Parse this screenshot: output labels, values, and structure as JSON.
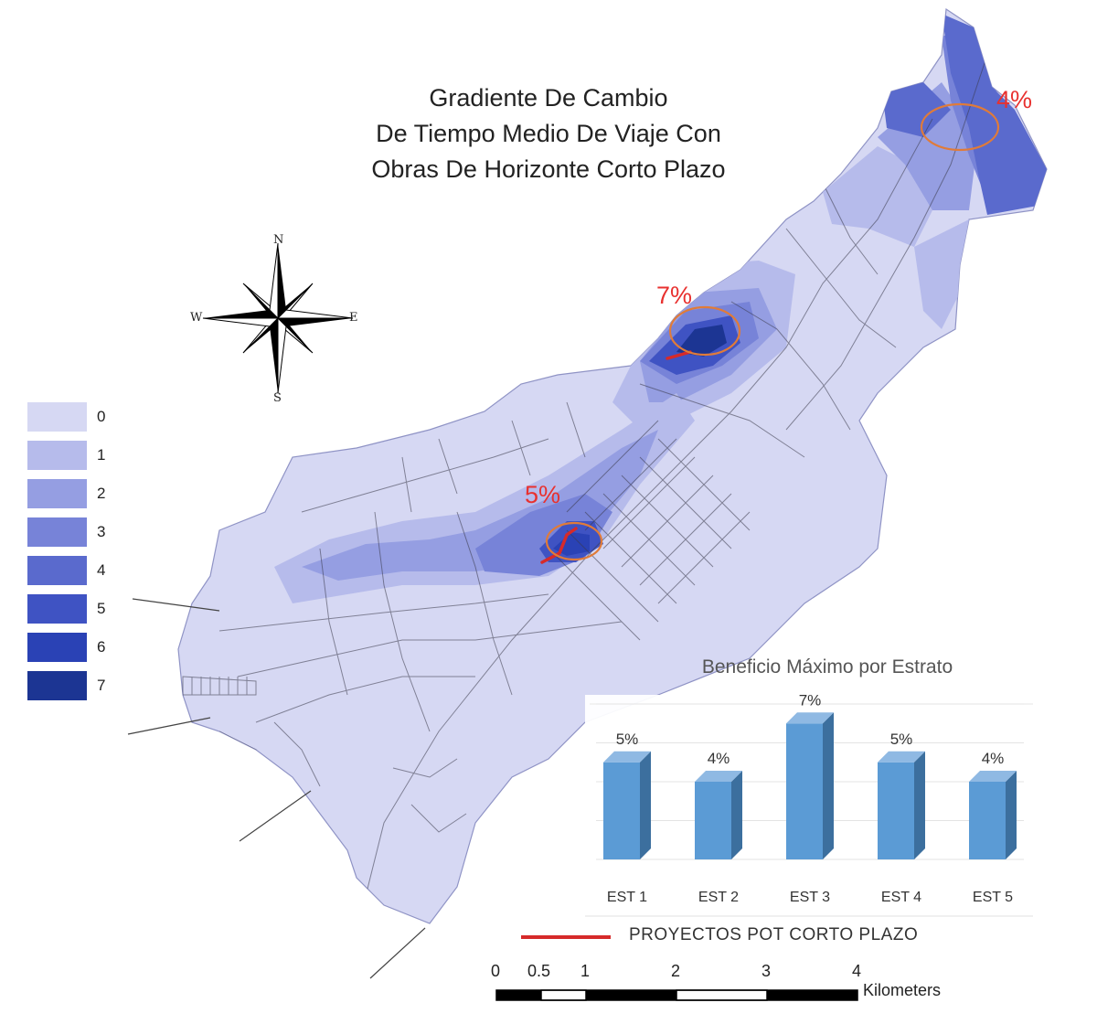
{
  "title": {
    "line1": "Gradiente De Cambio",
    "line2": "De Tiempo Medio De Viaje Con",
    "line3": "Obras De Horizonte Corto Plazo"
  },
  "compass": {
    "n": "N",
    "s": "S",
    "e": "E",
    "w": "W"
  },
  "legend": [
    {
      "label": "0",
      "color": "#d6d8f3"
    },
    {
      "label": "1",
      "color": "#b6bbeb"
    },
    {
      "label": "2",
      "color": "#959ee2"
    },
    {
      "label": "3",
      "color": "#7783d8"
    },
    {
      "label": "4",
      "color": "#5a6acd"
    },
    {
      "label": "5",
      "color": "#3f53c3"
    },
    {
      "label": "6",
      "color": "#2a42b5"
    },
    {
      "label": "7",
      "color": "#1c3593"
    }
  ],
  "map_labels": {
    "hotspot_north": "4%",
    "hotspot_mid": "7%",
    "hotspot_center": "5%"
  },
  "chart_data": {
    "type": "bar",
    "title": "Beneficio Máximo por Estrato",
    "categories": [
      "EST 1",
      "EST 2",
      "EST 3",
      "EST 4",
      "EST 5"
    ],
    "values": [
      5,
      4,
      7,
      5,
      4
    ],
    "data_labels": [
      "5%",
      "4%",
      "7%",
      "5%",
      "4%"
    ],
    "ylim": [
      0,
      8
    ],
    "grid": true,
    "bar_color": "#5b9bd5"
  },
  "project_legend": {
    "label": "PROYECTOS POT CORTO PLAZO",
    "color": "#d62a2a"
  },
  "scale_bar": {
    "ticks": [
      "0",
      "0.5",
      "1",
      "2",
      "3",
      "4"
    ],
    "unit": "Kilometers"
  },
  "colors": {
    "hotspot_ring": "#e07b39",
    "pct_text": "#e8312f"
  }
}
